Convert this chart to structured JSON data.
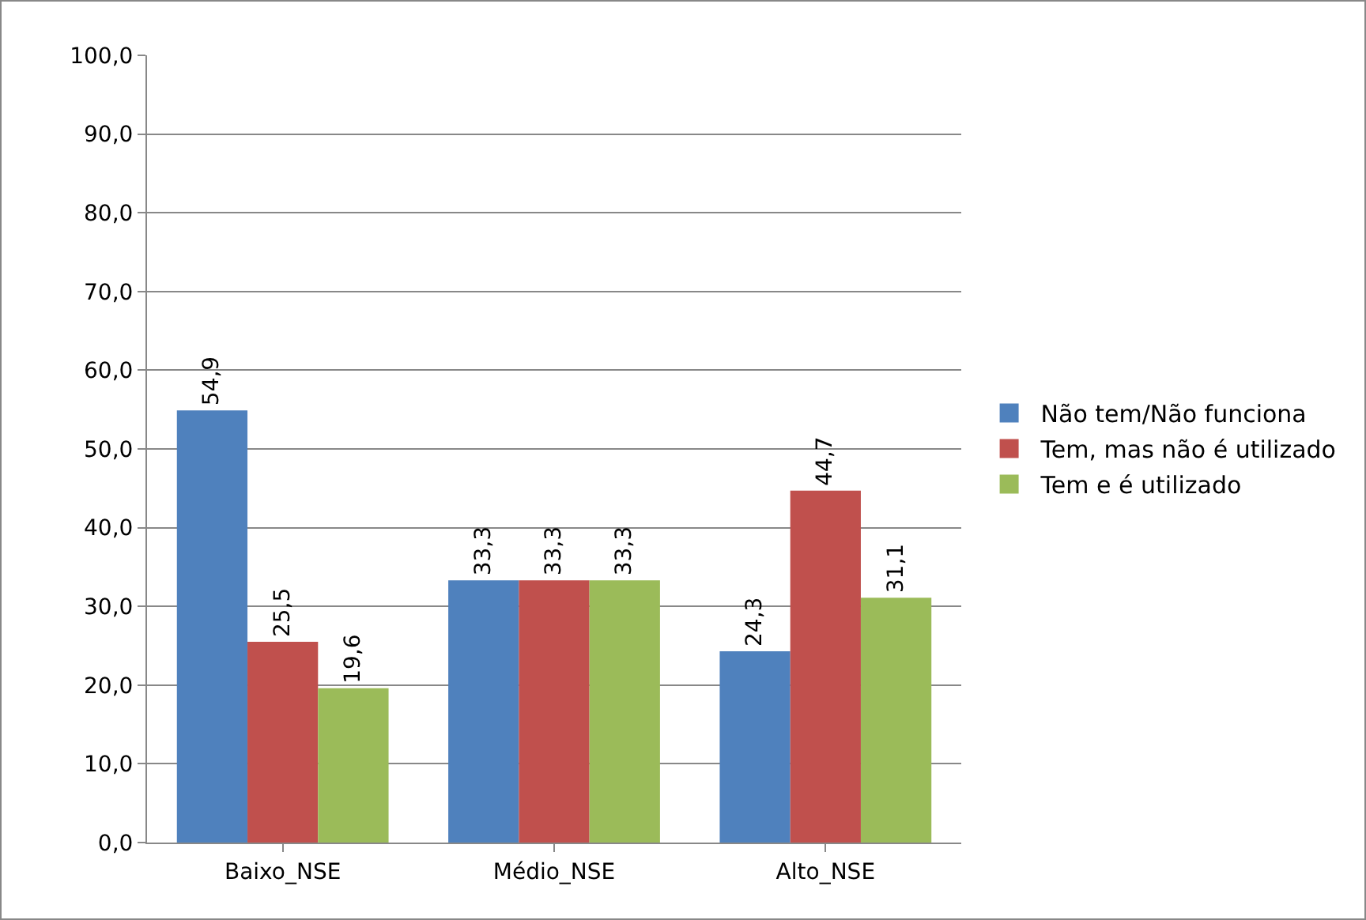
{
  "chart_data": {
    "type": "bar",
    "categories": [
      "Baixo_NSE",
      "Médio_NSE",
      "Alto_NSE"
    ],
    "series": [
      {
        "name": "Não tem/Não funciona",
        "color": "#4f81bd",
        "values": [
          54.9,
          33.3,
          24.3
        ],
        "value_labels": [
          "54,9",
          "33,3",
          "24,3"
        ]
      },
      {
        "name": "Tem, mas não é utilizado",
        "color": "#c0504d",
        "values": [
          25.5,
          33.3,
          44.7
        ],
        "value_labels": [
          "25,5",
          "33,3",
          "44,7"
        ]
      },
      {
        "name": "Tem e é utilizado",
        "color": "#9bbb59",
        "values": [
          19.6,
          33.3,
          31.1
        ],
        "value_labels": [
          "19,6",
          "33,3",
          "31,1"
        ]
      }
    ],
    "ylim": [
      0,
      100
    ],
    "yticks": [
      {
        "value": 0,
        "label": "0,0"
      },
      {
        "value": 10,
        "label": "10,0"
      },
      {
        "value": 20,
        "label": "20,0"
      },
      {
        "value": 30,
        "label": "30,0"
      },
      {
        "value": 40,
        "label": "40,0"
      },
      {
        "value": 50,
        "label": "50,0"
      },
      {
        "value": 60,
        "label": "60,0"
      },
      {
        "value": 70,
        "label": "70,0"
      },
      {
        "value": 80,
        "label": "80,0"
      },
      {
        "value": 90,
        "label": "90,0"
      },
      {
        "value": 100,
        "label": "100,0"
      }
    ],
    "grid": "y",
    "legend": "right"
  }
}
